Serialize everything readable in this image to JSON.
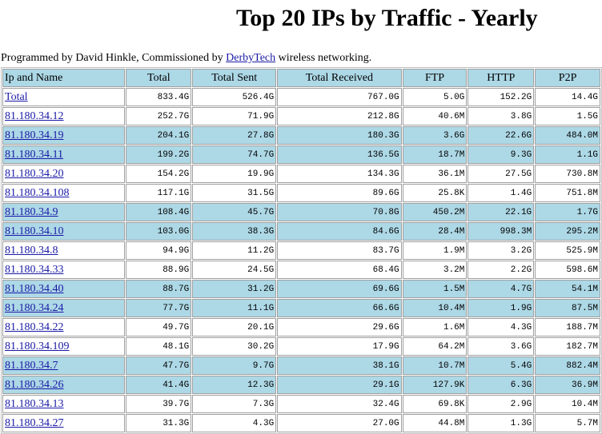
{
  "page": {
    "title": "Top 20 IPs by Traffic - Yearly",
    "credits_prefix": "Programmed by David Hinkle, Commissioned by ",
    "credits_link": "DerbyTech",
    "credits_suffix": " wireless networking."
  },
  "table": {
    "headers": [
      "Ip and Name",
      "Total",
      "Total Sent",
      "Total Received",
      "FTP",
      "HTTP",
      "P2P"
    ],
    "rows": [
      {
        "name": "Total",
        "total": "833.4G",
        "sent": "526.4G",
        "received": "767.0G",
        "ftp": "5.0G",
        "http": "152.2G",
        "p2p": "14.4G",
        "shade": "white"
      },
      {
        "name": "81.180.34.12",
        "total": "252.7G",
        "sent": "71.9G",
        "received": "212.8G",
        "ftp": "40.6M",
        "http": "3.8G",
        "p2p": "1.5G",
        "shade": "white"
      },
      {
        "name": "81.180.34.19",
        "total": "204.1G",
        "sent": "27.8G",
        "received": "180.3G",
        "ftp": "3.6G",
        "http": "22.6G",
        "p2p": "484.0M",
        "shade": "blue"
      },
      {
        "name": "81.180.34.11",
        "total": "199.2G",
        "sent": "74.7G",
        "received": "136.5G",
        "ftp": "18.7M",
        "http": "9.3G",
        "p2p": "1.1G",
        "shade": "blue"
      },
      {
        "name": "81.180.34.20",
        "total": "154.2G",
        "sent": "19.9G",
        "received": "134.3G",
        "ftp": "36.1M",
        "http": "27.5G",
        "p2p": "730.8M",
        "shade": "white"
      },
      {
        "name": "81.180.34.108",
        "total": "117.1G",
        "sent": "31.5G",
        "received": "89.6G",
        "ftp": "25.8K",
        "http": "1.4G",
        "p2p": "751.8M",
        "shade": "white"
      },
      {
        "name": "81.180.34.9",
        "total": "108.4G",
        "sent": "45.7G",
        "received": "70.8G",
        "ftp": "450.2M",
        "http": "22.1G",
        "p2p": "1.7G",
        "shade": "blue"
      },
      {
        "name": "81.180.34.10",
        "total": "103.0G",
        "sent": "38.3G",
        "received": "84.6G",
        "ftp": "28.4M",
        "http": "998.3M",
        "p2p": "295.2M",
        "shade": "blue"
      },
      {
        "name": "81.180.34.8",
        "total": "94.9G",
        "sent": "11.2G",
        "received": "83.7G",
        "ftp": "1.9M",
        "http": "3.2G",
        "p2p": "525.9M",
        "shade": "white"
      },
      {
        "name": "81.180.34.33",
        "total": "88.9G",
        "sent": "24.5G",
        "received": "68.4G",
        "ftp": "3.2M",
        "http": "2.2G",
        "p2p": "598.6M",
        "shade": "white"
      },
      {
        "name": "81.180.34.40",
        "total": "88.7G",
        "sent": "31.2G",
        "received": "69.6G",
        "ftp": "1.5M",
        "http": "4.7G",
        "p2p": "54.1M",
        "shade": "blue"
      },
      {
        "name": "81.180.34.24",
        "total": "77.7G",
        "sent": "11.1G",
        "received": "66.6G",
        "ftp": "10.4M",
        "http": "1.9G",
        "p2p": "87.5M",
        "shade": "blue"
      },
      {
        "name": "81.180.34.22",
        "total": "49.7G",
        "sent": "20.1G",
        "received": "29.6G",
        "ftp": "1.6M",
        "http": "4.3G",
        "p2p": "188.7M",
        "shade": "white"
      },
      {
        "name": "81.180.34.109",
        "total": "48.1G",
        "sent": "30.2G",
        "received": "17.9G",
        "ftp": "64.2M",
        "http": "3.6G",
        "p2p": "182.7M",
        "shade": "white"
      },
      {
        "name": "81.180.34.7",
        "total": "47.7G",
        "sent": "9.7G",
        "received": "38.1G",
        "ftp": "10.7M",
        "http": "5.4G",
        "p2p": "882.4M",
        "shade": "blue"
      },
      {
        "name": "81.180.34.26",
        "total": "41.4G",
        "sent": "12.3G",
        "received": "29.1G",
        "ftp": "127.9K",
        "http": "6.3G",
        "p2p": "36.9M",
        "shade": "blue"
      },
      {
        "name": "81.180.34.13",
        "total": "39.7G",
        "sent": "7.3G",
        "received": "32.4G",
        "ftp": "69.8K",
        "http": "2.9G",
        "p2p": "10.4M",
        "shade": "white"
      },
      {
        "name": "81.180.34.27",
        "total": "31.3G",
        "sent": "4.3G",
        "received": "27.0G",
        "ftp": "44.8M",
        "http": "1.3G",
        "p2p": "5.7M",
        "shade": "white"
      }
    ]
  }
}
